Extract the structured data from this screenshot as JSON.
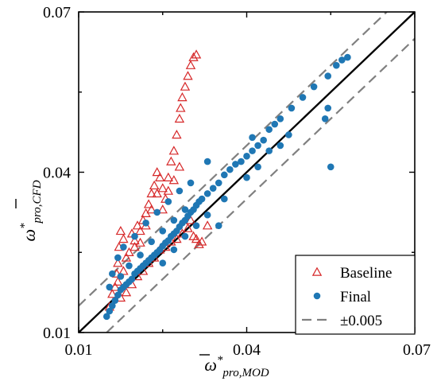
{
  "chart_data": {
    "type": "scatter",
    "x_label": {
      "symbol": "ω",
      "superscript": "*",
      "subscript": "pro,MOD"
    },
    "y_label": {
      "symbol": "ω",
      "superscript": "*",
      "subscript": "pro,CFD"
    },
    "xlim": [
      0.01,
      0.07
    ],
    "ylim": [
      0.01,
      0.07
    ],
    "x_ticks": [
      "0.01",
      "0.04",
      "0.07"
    ],
    "y_ticks": [
      "0.01",
      "0.04",
      "0.07"
    ],
    "grid": false,
    "legend_position": "bottom-right",
    "reference_lines": [
      {
        "name": "y = x",
        "offset": 0,
        "color": "#000000",
        "style": "solid"
      },
      {
        "name": "±0.005",
        "offset": 0.005,
        "color": "#808080",
        "style": "dashed"
      },
      {
        "name": "±0.005",
        "offset": -0.005,
        "color": "#808080",
        "style": "dashed"
      }
    ],
    "series": [
      {
        "name": "Baseline",
        "marker": "triangle-open",
        "color": "#d62728",
        "points": [
          [
            0.0155,
            0.0148
          ],
          [
            0.016,
            0.0172
          ],
          [
            0.0165,
            0.0185
          ],
          [
            0.0168,
            0.021
          ],
          [
            0.017,
            0.023
          ],
          [
            0.0172,
            0.026
          ],
          [
            0.0175,
            0.029
          ],
          [
            0.018,
            0.0275
          ],
          [
            0.0185,
            0.024
          ],
          [
            0.019,
            0.025
          ],
          [
            0.0195,
            0.0285
          ],
          [
            0.02,
            0.0272
          ],
          [
            0.0205,
            0.03
          ],
          [
            0.021,
            0.0268
          ],
          [
            0.0215,
            0.031
          ],
          [
            0.022,
            0.0323
          ],
          [
            0.0225,
            0.034
          ],
          [
            0.023,
            0.036
          ],
          [
            0.0235,
            0.0375
          ],
          [
            0.024,
            0.04
          ],
          [
            0.0245,
            0.039
          ],
          [
            0.025,
            0.033
          ],
          [
            0.0255,
            0.035
          ],
          [
            0.026,
            0.039
          ],
          [
            0.0265,
            0.042
          ],
          [
            0.027,
            0.044
          ],
          [
            0.0275,
            0.047
          ],
          [
            0.028,
            0.05
          ],
          [
            0.0282,
            0.052
          ],
          [
            0.0285,
            0.054
          ],
          [
            0.029,
            0.056
          ],
          [
            0.0295,
            0.058
          ],
          [
            0.03,
            0.06
          ],
          [
            0.0305,
            0.0615
          ],
          [
            0.031,
            0.062
          ],
          [
            0.03,
            0.031
          ],
          [
            0.0305,
            0.028
          ],
          [
            0.031,
            0.0275
          ],
          [
            0.0315,
            0.0265
          ],
          [
            0.032,
            0.027
          ],
          [
            0.033,
            0.03
          ],
          [
            0.028,
            0.041
          ],
          [
            0.027,
            0.0385
          ],
          [
            0.026,
            0.0365
          ],
          [
            0.025,
            0.037
          ],
          [
            0.024,
            0.036
          ],
          [
            0.023,
            0.033
          ],
          [
            0.022,
            0.03
          ],
          [
            0.021,
            0.029
          ],
          [
            0.02,
            0.026
          ],
          [
            0.0175,
            0.0165
          ],
          [
            0.0185,
            0.0175
          ],
          [
            0.0195,
            0.019
          ],
          [
            0.0205,
            0.0205
          ],
          [
            0.0215,
            0.0215
          ],
          [
            0.0225,
            0.023
          ],
          [
            0.0235,
            0.024
          ],
          [
            0.0245,
            0.0255
          ],
          [
            0.0255,
            0.026
          ],
          [
            0.0265,
            0.027
          ],
          [
            0.0275,
            0.0275
          ],
          [
            0.0285,
            0.0285
          ],
          [
            0.0295,
            0.0295
          ],
          [
            0.017,
            0.0195
          ],
          [
            0.018,
            0.0215
          ]
        ]
      },
      {
        "name": "Final",
        "marker": "circle-filled",
        "color": "#1f77b4",
        "points": [
          [
            0.015,
            0.013
          ],
          [
            0.0155,
            0.014
          ],
          [
            0.016,
            0.015
          ],
          [
            0.0165,
            0.016
          ],
          [
            0.017,
            0.017
          ],
          [
            0.0175,
            0.018
          ],
          [
            0.018,
            0.0185
          ],
          [
            0.0185,
            0.019
          ],
          [
            0.019,
            0.0195
          ],
          [
            0.0195,
            0.02
          ],
          [
            0.02,
            0.021
          ],
          [
            0.0205,
            0.0215
          ],
          [
            0.021,
            0.022
          ],
          [
            0.0215,
            0.0225
          ],
          [
            0.022,
            0.023
          ],
          [
            0.0225,
            0.0235
          ],
          [
            0.023,
            0.024
          ],
          [
            0.0235,
            0.0245
          ],
          [
            0.024,
            0.025
          ],
          [
            0.0245,
            0.0255
          ],
          [
            0.025,
            0.0262
          ],
          [
            0.0255,
            0.0268
          ],
          [
            0.026,
            0.0272
          ],
          [
            0.0265,
            0.028
          ],
          [
            0.027,
            0.0285
          ],
          [
            0.0275,
            0.029
          ],
          [
            0.028,
            0.0298
          ],
          [
            0.0285,
            0.0305
          ],
          [
            0.029,
            0.031
          ],
          [
            0.0295,
            0.0318
          ],
          [
            0.03,
            0.0325
          ],
          [
            0.0305,
            0.033
          ],
          [
            0.031,
            0.0338
          ],
          [
            0.0315,
            0.0345
          ],
          [
            0.032,
            0.035
          ],
          [
            0.033,
            0.036
          ],
          [
            0.034,
            0.037
          ],
          [
            0.035,
            0.038
          ],
          [
            0.036,
            0.0395
          ],
          [
            0.037,
            0.0405
          ],
          [
            0.038,
            0.0415
          ],
          [
            0.039,
            0.042
          ],
          [
            0.04,
            0.043
          ],
          [
            0.041,
            0.044
          ],
          [
            0.042,
            0.045
          ],
          [
            0.043,
            0.046
          ],
          [
            0.044,
            0.048
          ],
          [
            0.045,
            0.049
          ],
          [
            0.046,
            0.05
          ],
          [
            0.048,
            0.052
          ],
          [
            0.05,
            0.054
          ],
          [
            0.052,
            0.056
          ],
          [
            0.0545,
            0.058
          ],
          [
            0.056,
            0.06
          ],
          [
            0.057,
            0.061
          ],
          [
            0.058,
            0.0615
          ],
          [
            0.0545,
            0.052
          ],
          [
            0.054,
            0.05
          ],
          [
            0.055,
            0.041
          ],
          [
            0.035,
            0.03
          ],
          [
            0.03,
            0.038
          ],
          [
            0.028,
            0.0365
          ],
          [
            0.026,
            0.0345
          ],
          [
            0.024,
            0.0325
          ],
          [
            0.022,
            0.0305
          ],
          [
            0.02,
            0.028
          ],
          [
            0.018,
            0.026
          ],
          [
            0.017,
            0.024
          ],
          [
            0.016,
            0.021
          ],
          [
            0.0155,
            0.0185
          ],
          [
            0.025,
            0.023
          ],
          [
            0.027,
            0.0255
          ],
          [
            0.029,
            0.028
          ],
          [
            0.031,
            0.03
          ],
          [
            0.033,
            0.032
          ],
          [
            0.036,
            0.035
          ],
          [
            0.044,
            0.044
          ],
          [
            0.046,
            0.045
          ],
          [
            0.04,
            0.039
          ],
          [
            0.042,
            0.041
          ],
          [
            0.023,
            0.027
          ],
          [
            0.021,
            0.0245
          ],
          [
            0.019,
            0.0225
          ],
          [
            0.0175,
            0.0205
          ],
          [
            0.025,
            0.029
          ],
          [
            0.027,
            0.031
          ],
          [
            0.029,
            0.033
          ],
          [
            0.033,
            0.042
          ],
          [
            0.041,
            0.0465
          ],
          [
            0.0475,
            0.047
          ]
        ]
      }
    ],
    "legend": [
      {
        "label": "Baseline",
        "marker": "triangle-open",
        "color": "#d62728"
      },
      {
        "label": "Final",
        "marker": "circle-filled",
        "color": "#1f77b4"
      },
      {
        "label": "±0.005",
        "marker": "dashed-line",
        "color": "#808080"
      }
    ]
  }
}
